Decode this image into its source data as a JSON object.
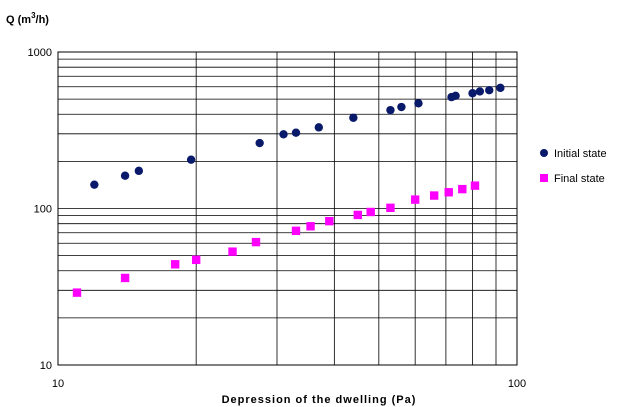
{
  "chart_data": {
    "type": "scatter",
    "title": "",
    "ylabel": "Q (m3/h)",
    "ylabel_parts": {
      "base": "Q (m",
      "sup": "3",
      "end": "/h)"
    },
    "xlabel": "Depression of the dwelling (Pa)",
    "x_scale": "log",
    "y_scale": "log",
    "xlim": [
      10,
      100
    ],
    "ylim": [
      10,
      1000
    ],
    "x_ticks": [
      "10",
      "100"
    ],
    "y_ticks": [
      "10",
      "100",
      "1000"
    ],
    "grid": "major and minor on both axes",
    "legend_position": "right",
    "series": [
      {
        "name": "Initial state",
        "marker": "circle",
        "color": "#0a1a6b",
        "points": [
          [
            12,
            142
          ],
          [
            14,
            162
          ],
          [
            15,
            174
          ],
          [
            19.5,
            205
          ],
          [
            27.5,
            262
          ],
          [
            31,
            298
          ],
          [
            33,
            305
          ],
          [
            37,
            330
          ],
          [
            44,
            380
          ],
          [
            53,
            425
          ],
          [
            56,
            445
          ],
          [
            61,
            470
          ],
          [
            72,
            515
          ],
          [
            73.5,
            525
          ],
          [
            80,
            545
          ],
          [
            83,
            560
          ],
          [
            87,
            570
          ],
          [
            92,
            590
          ]
        ]
      },
      {
        "name": "Final state",
        "marker": "square",
        "color": "#ff00ff",
        "points": [
          [
            11,
            29
          ],
          [
            14,
            36
          ],
          [
            18,
            44
          ],
          [
            20,
            47
          ],
          [
            24,
            53
          ],
          [
            27,
            61
          ],
          [
            33,
            72
          ],
          [
            35.5,
            77
          ],
          [
            39,
            83
          ],
          [
            45,
            91
          ],
          [
            48,
            95
          ],
          [
            53,
            101
          ],
          [
            60,
            114
          ],
          [
            66,
            121
          ],
          [
            71,
            127
          ],
          [
            76,
            133
          ],
          [
            81,
            140
          ]
        ]
      }
    ]
  }
}
